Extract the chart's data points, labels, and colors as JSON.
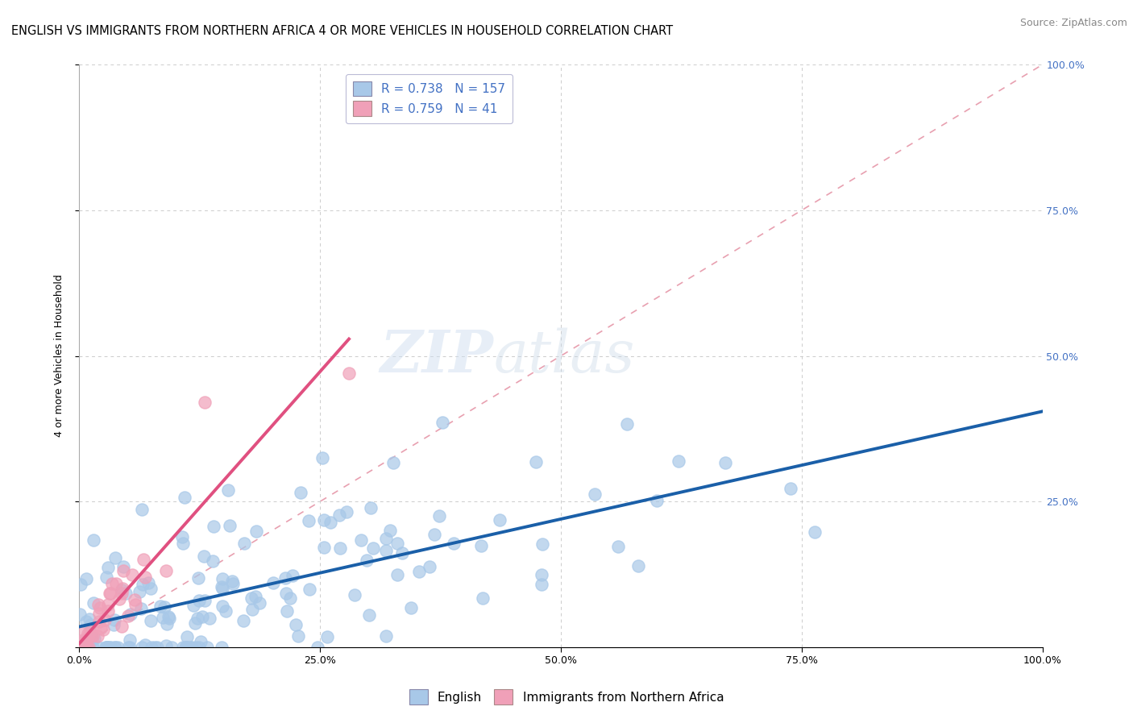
{
  "title": "ENGLISH VS IMMIGRANTS FROM NORTHERN AFRICA 4 OR MORE VEHICLES IN HOUSEHOLD CORRELATION CHART",
  "source": "Source: ZipAtlas.com",
  "ylabel": "4 or more Vehicles in Household",
  "watermark_zip": "ZIP",
  "watermark_atlas": "atlas",
  "legend_english_R": 0.738,
  "legend_english_N": 157,
  "legend_immigrants_R": 0.759,
  "legend_immigrants_N": 41,
  "trendline_english_color": "#1a5fa8",
  "trendline_immigrants_color": "#e05080",
  "scatter_english_color": "#a8c8e8",
  "scatter_immigrants_color": "#f0a0b8",
  "diagonal_color": "#e8a0b0",
  "grid_color": "#cccccc",
  "right_tick_color": "#4472c4",
  "title_fontsize": 10.5,
  "source_fontsize": 9,
  "label_fontsize": 9,
  "tick_fontsize": 9,
  "legend_fontsize": 11
}
